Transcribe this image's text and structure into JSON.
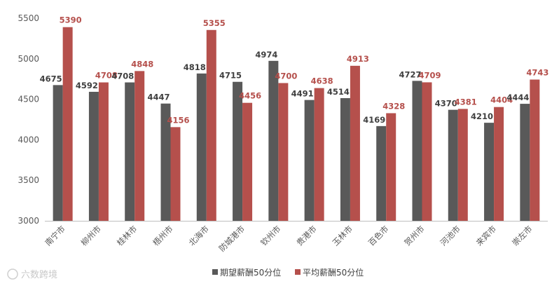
{
  "colors": {
    "expected": "#595959",
    "average": "#b5504c",
    "axis": "#bfbfbf",
    "grid": "#d9d9d9"
  },
  "watermark": "六数跨境",
  "chart_data": {
    "type": "bar",
    "categories": [
      "南宁市",
      "柳州市",
      "桂林市",
      "梧州市",
      "北海市",
      "防城港市",
      "钦州市",
      "贵港市",
      "玉林市",
      "百色市",
      "贺州市",
      "河池市",
      "来宾市",
      "崇左市"
    ],
    "series": [
      {
        "name": "期望薪酬50分位",
        "values": [
          4675,
          4592,
          4708,
          4447,
          4818,
          4715,
          4974,
          4491,
          4514,
          4169,
          4727,
          4370,
          4210,
          4444
        ]
      },
      {
        "name": "平均薪酬50分位",
        "values": [
          5390,
          4708,
          4848,
          4156,
          5355,
          4456,
          4700,
          4638,
          4913,
          4328,
          4709,
          4381,
          4404,
          4743
        ]
      }
    ],
    "ylim": [
      3000,
      5500
    ],
    "yticks": [
      3000,
      3500,
      4000,
      4500,
      5000,
      5500
    ],
    "grid": false,
    "legend": "bottom"
  }
}
